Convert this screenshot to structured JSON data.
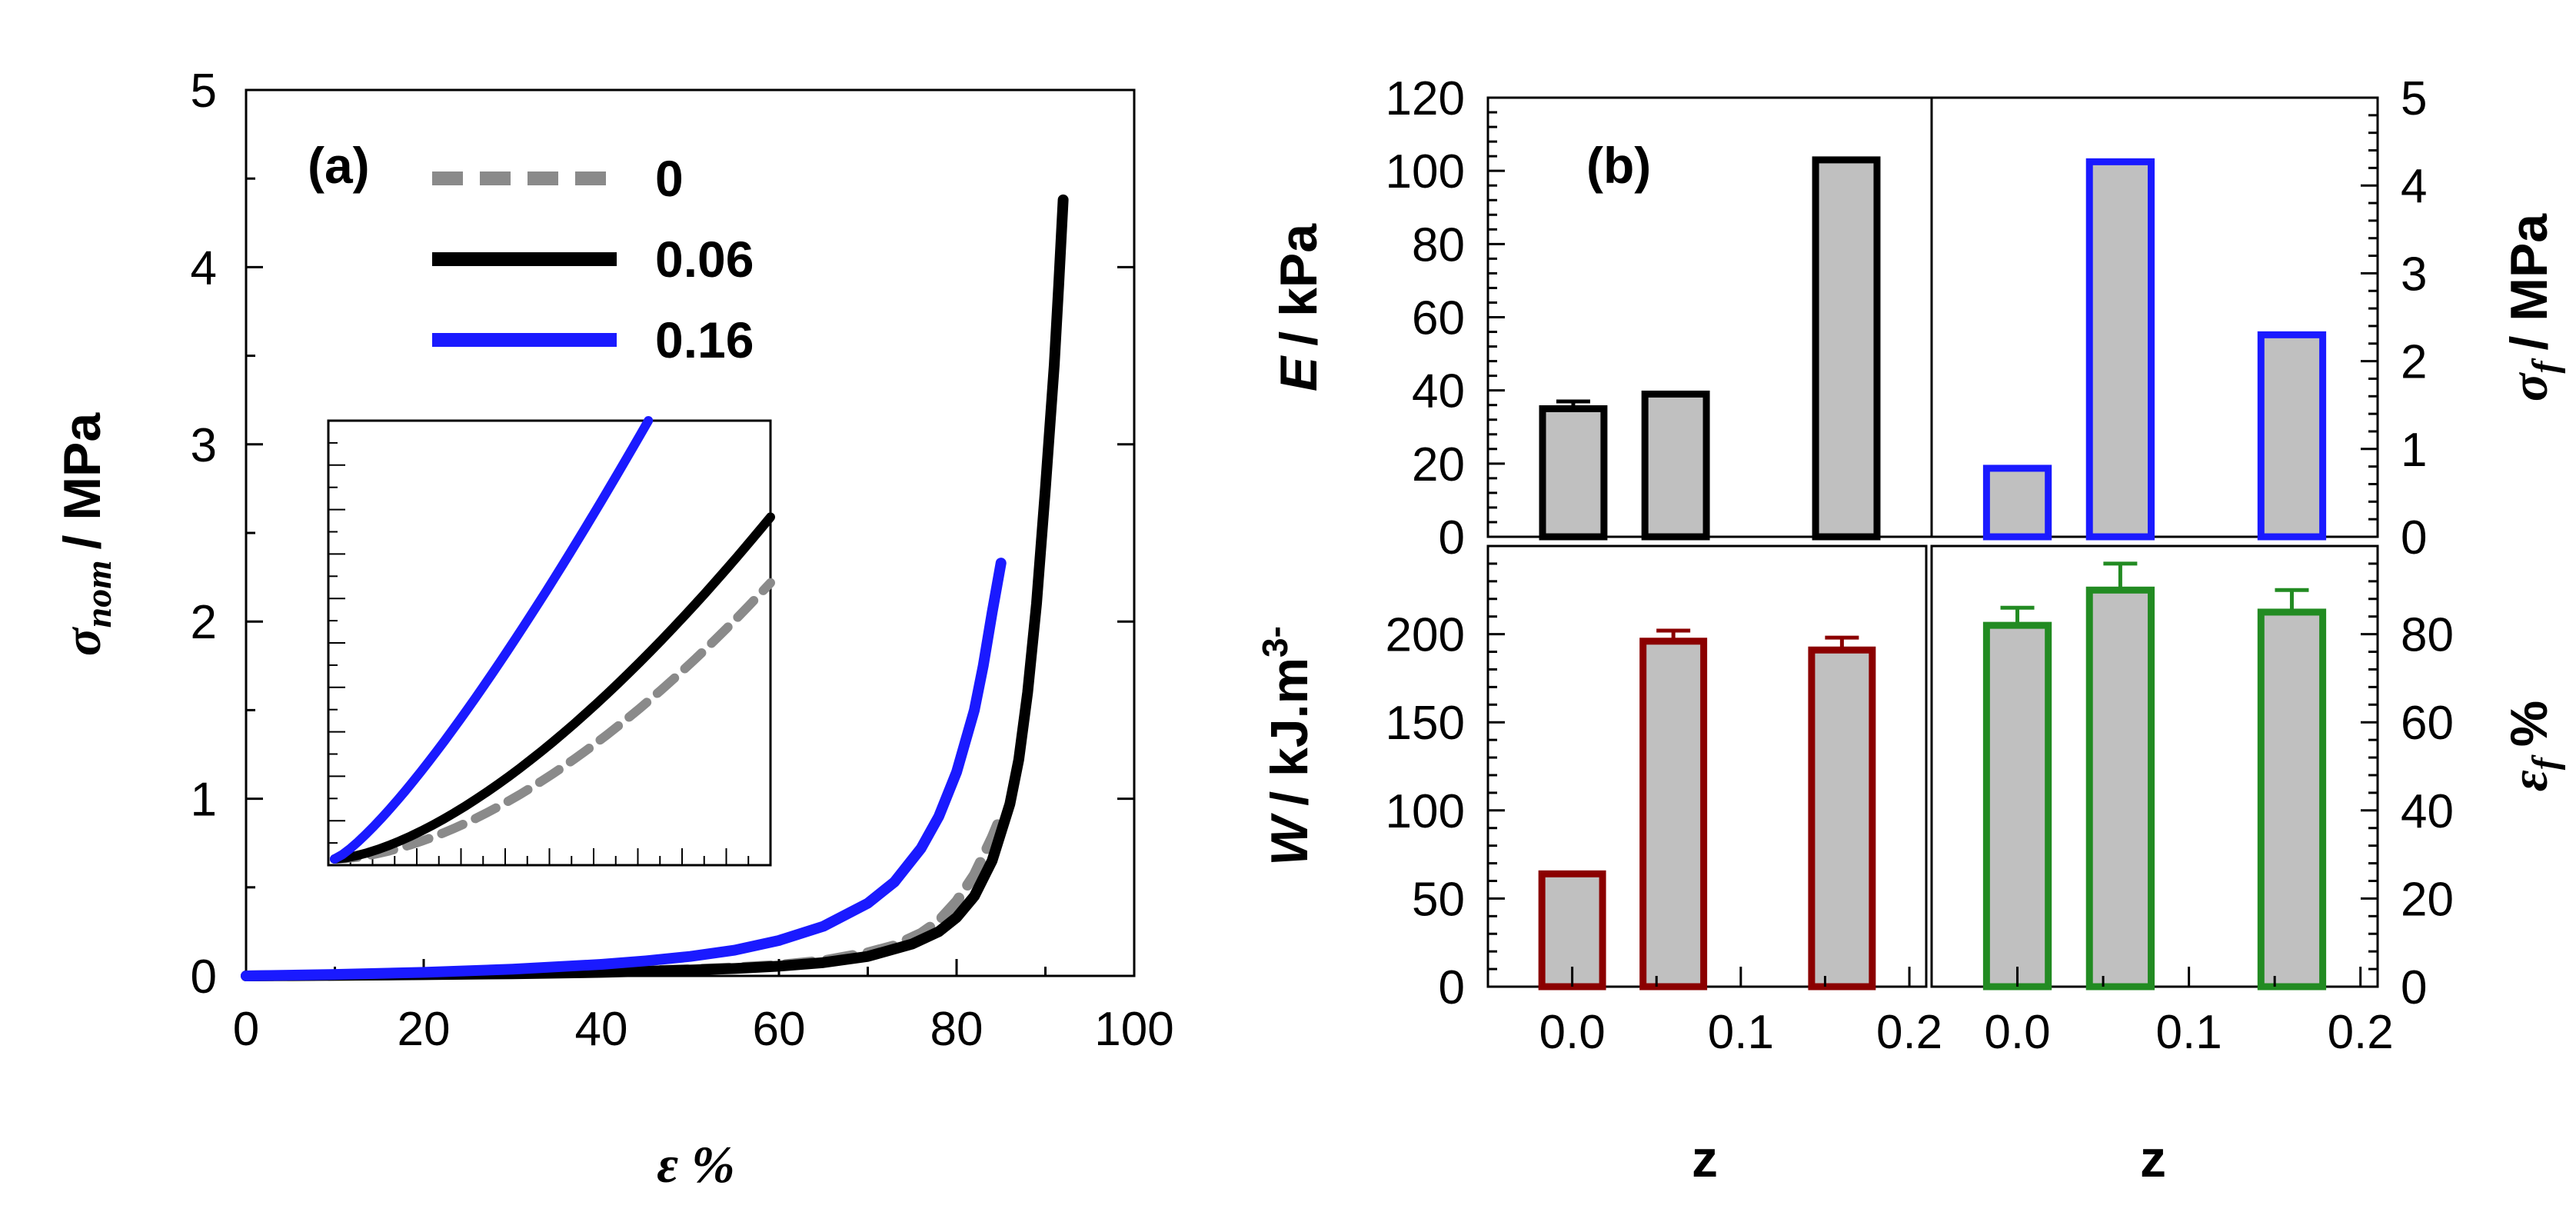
{
  "colors": {
    "gray": "#8a8a8a",
    "black": "#000000",
    "blue": "#1a1aff",
    "dark_red": "#8b0000",
    "green": "#228b22",
    "bar_fill": "#c0c0c0"
  },
  "chart_data": [
    {
      "panel": "a",
      "type": "line",
      "panel_label": "(a)",
      "xlabel": "ε %",
      "ylabel": "σ_nom / MPa",
      "ylabel_symbol": "σ",
      "ylabel_subscript": "nom",
      "ylabel_unit": "/ MPa",
      "xlim": [
        0,
        100
      ],
      "ylim": [
        0,
        5
      ],
      "xticks": [
        "0",
        "20",
        "40",
        "60",
        "80",
        "100"
      ],
      "yticks": [
        "0",
        "1",
        "2",
        "3",
        "4",
        "5"
      ],
      "legend_position": "top-left",
      "series": [
        {
          "name": "0",
          "color": "#8a8a8a",
          "style": "dashed",
          "x": [
            0,
            10,
            20,
            30,
            40,
            50,
            55,
            60,
            65,
            70,
            73,
            76,
            78,
            80,
            82,
            84,
            85
          ],
          "y": [
            0,
            0.003,
            0.008,
            0.014,
            0.022,
            0.035,
            0.045,
            0.06,
            0.085,
            0.13,
            0.17,
            0.24,
            0.31,
            0.42,
            0.57,
            0.78,
            0.9
          ]
        },
        {
          "name": "0.06",
          "color": "#000000",
          "style": "solid",
          "x": [
            0,
            10,
            20,
            30,
            40,
            50,
            55,
            60,
            65,
            70,
            75,
            78,
            80,
            82,
            84,
            86,
            87,
            88,
            89,
            90,
            91,
            91.5,
            92
          ],
          "y": [
            0,
            0.003,
            0.007,
            0.012,
            0.02,
            0.033,
            0.042,
            0.055,
            0.075,
            0.11,
            0.18,
            0.25,
            0.33,
            0.45,
            0.65,
            0.97,
            1.22,
            1.6,
            2.1,
            2.75,
            3.45,
            3.9,
            4.38
          ]
        },
        {
          "name": "0.16",
          "color": "#1a1aff",
          "style": "solid",
          "x": [
            0,
            10,
            20,
            30,
            40,
            45,
            50,
            55,
            60,
            65,
            70,
            73,
            76,
            78,
            80,
            82,
            83,
            84,
            85
          ],
          "y": [
            0,
            0.008,
            0.02,
            0.038,
            0.065,
            0.085,
            0.11,
            0.145,
            0.2,
            0.28,
            0.41,
            0.53,
            0.72,
            0.9,
            1.15,
            1.5,
            1.75,
            2.05,
            2.33
          ]
        }
      ]
    },
    {
      "panel": "b",
      "type": "bar",
      "panel_label": "(b)",
      "xlabel": "z",
      "xticks": [
        "0.0",
        "0.1",
        "0.2"
      ],
      "xlim": [
        -0.05,
        0.21
      ],
      "subplots": [
        {
          "id": "E",
          "position": "top-left",
          "ylabel": "E / kPa",
          "ylabel_symbol": "E",
          "ylabel_unit": "/ kPa",
          "yaxis_side": "left",
          "ylim": [
            0,
            120
          ],
          "yticks": [
            "0",
            "20",
            "40",
            "60",
            "80",
            "100",
            "120"
          ],
          "edge_color": "#000000",
          "categories": [
            0,
            0.06,
            0.16
          ],
          "values": [
            35,
            39,
            103
          ],
          "errors": [
            2,
            0,
            0
          ]
        },
        {
          "id": "sigma_f",
          "position": "top-right",
          "ylabel": "σ_f / MPa",
          "ylabel_symbol": "σ",
          "ylabel_subscript": "f",
          "ylabel_unit": "/ MPa",
          "yaxis_side": "right",
          "ylim": [
            0,
            5
          ],
          "yticks": [
            "0",
            "1",
            "2",
            "3",
            "4",
            "5"
          ],
          "edge_color": "#1a1aff",
          "categories": [
            0,
            0.06,
            0.16
          ],
          "values": [
            0.78,
            4.27,
            2.3
          ],
          "errors": [
            0,
            0,
            0
          ]
        },
        {
          "id": "W",
          "position": "bottom-left",
          "ylabel": "W / kJ.m³⁻",
          "ylabel_symbol": "W",
          "ylabel_unit": "/ kJ.m",
          "ylabel_superscript": "3-",
          "yaxis_side": "left",
          "ylim": [
            0,
            250
          ],
          "yticks": [
            "0",
            "50",
            "100",
            "150",
            "200"
          ],
          "edge_color": "#8b0000",
          "categories": [
            0,
            0.06,
            0.16
          ],
          "values": [
            64,
            196,
            191
          ],
          "errors": [
            0,
            6,
            7
          ]
        },
        {
          "id": "epsilon_f",
          "position": "bottom-right",
          "ylabel": "ε_f %",
          "ylabel_symbol": "ε",
          "ylabel_subscript": "f",
          "ylabel_unit": "%",
          "yaxis_side": "right",
          "ylim": [
            0,
            100
          ],
          "yticks": [
            "0",
            "20",
            "40",
            "60",
            "80"
          ],
          "edge_color": "#228b22",
          "categories": [
            0,
            0.06,
            0.16
          ],
          "values": [
            82,
            90,
            85
          ],
          "errors": [
            4,
            6,
            5
          ]
        }
      ]
    }
  ]
}
